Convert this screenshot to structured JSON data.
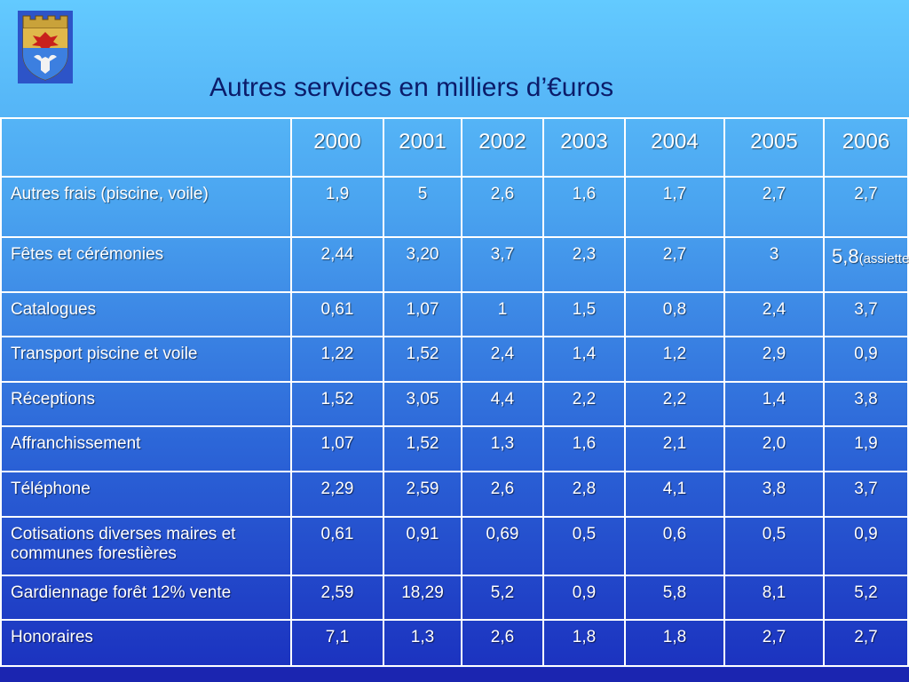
{
  "title": "Autres services en milliers d’€uros",
  "colors": {
    "title": "#0b1c6a",
    "cell_text": "#ffffff",
    "border": "#ffffff"
  },
  "table": {
    "header_blank": "",
    "years": [
      "2000",
      "2001",
      "2002",
      "2003",
      "2004",
      "2005",
      "2006"
    ],
    "rows": [
      {
        "label": "Autres frais (piscine, voile)",
        "values": [
          "1,9",
          "5",
          "2,6",
          "1,6",
          "1,7",
          "2,7",
          "2,7"
        ]
      },
      {
        "label": "Fêtes et cérémonies",
        "values": [
          "2,44",
          "3,20",
          "3,7",
          "2,3",
          "2,7",
          "3",
          "5,8"
        ],
        "last_suffix": "(assiettes)"
      },
      {
        "label": "Catalogues",
        "values": [
          "0,61",
          "1,07",
          "1",
          "1,5",
          "0,8",
          "2,4",
          "3,7"
        ]
      },
      {
        "label": "Transport piscine et voile",
        "values": [
          "1,22",
          "1,52",
          "2,4",
          "1,4",
          "1,2",
          "2,9",
          "0,9"
        ]
      },
      {
        "label": "Réceptions",
        "values": [
          "1,52",
          "3,05",
          "4,4",
          "2,2",
          "2,2",
          "1,4",
          "3,8"
        ]
      },
      {
        "label": "Affranchissement",
        "values": [
          "1,07",
          "1,52",
          "1,3",
          "1,6",
          "2,1",
          "2,0",
          "1,9"
        ]
      },
      {
        "label": "Téléphone",
        "values": [
          "2,29",
          "2,59",
          "2,6",
          "2,8",
          "4,1",
          "3,8",
          "3,7"
        ]
      },
      {
        "label": "Cotisations diverses maires et communes forestières",
        "values": [
          "0,61",
          "0,91",
          "0,69",
          "0,5",
          "0,6",
          "0,5",
          "0,9"
        ]
      },
      {
        "label": "Gardiennage forêt 12% vente",
        "values": [
          "2,59",
          "18,29",
          "5,2",
          "0,9",
          "5,8",
          "8,1",
          "5,2"
        ]
      },
      {
        "label": "Honoraires",
        "values": [
          "7,1",
          "1,3",
          "2,6",
          "1,8",
          "1,8",
          "2,7",
          "2,7"
        ]
      }
    ]
  }
}
